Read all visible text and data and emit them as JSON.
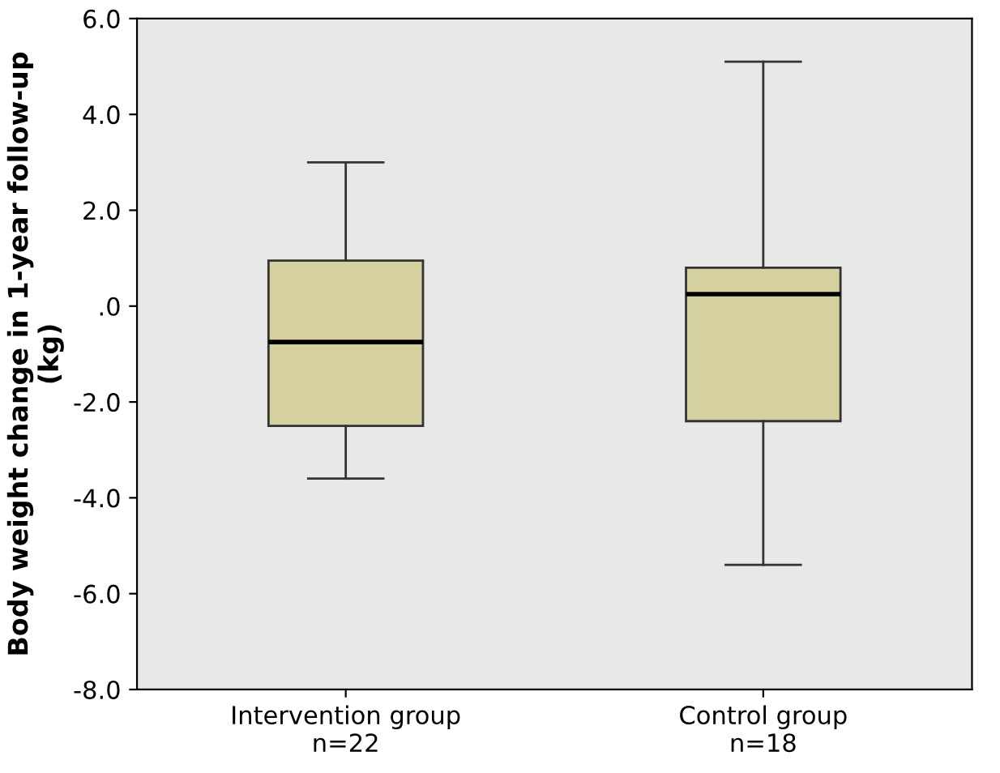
{
  "chart_data": {
    "type": "box",
    "ylabel": "Body weight change in 1-year follow-up\n(kg)",
    "categories": [
      "Intervention group\nn=22",
      "Control group\nn=18"
    ],
    "color": "#d4d0a0",
    "boxes": [
      {
        "low": -3.6,
        "q1": -2.5,
        "median": -0.75,
        "q3": 0.95,
        "high": 3.0
      },
      {
        "low": -5.4,
        "q1": -2.4,
        "median": 0.25,
        "q3": 0.8,
        "high": 5.1
      }
    ],
    "ylim": [
      -8,
      6
    ],
    "yticks": [
      {
        "value": -8,
        "label": "-8.0"
      },
      {
        "value": -6,
        "label": "-6.0"
      },
      {
        "value": -4,
        "label": "-4.0"
      },
      {
        "value": -2,
        "label": "-2.0"
      },
      {
        "value": 0,
        "label": ".0"
      },
      {
        "value": 2,
        "label": "2.0"
      },
      {
        "value": 4,
        "label": "4.0"
      },
      {
        "value": 6,
        "label": "6.0"
      }
    ],
    "grid": false
  }
}
